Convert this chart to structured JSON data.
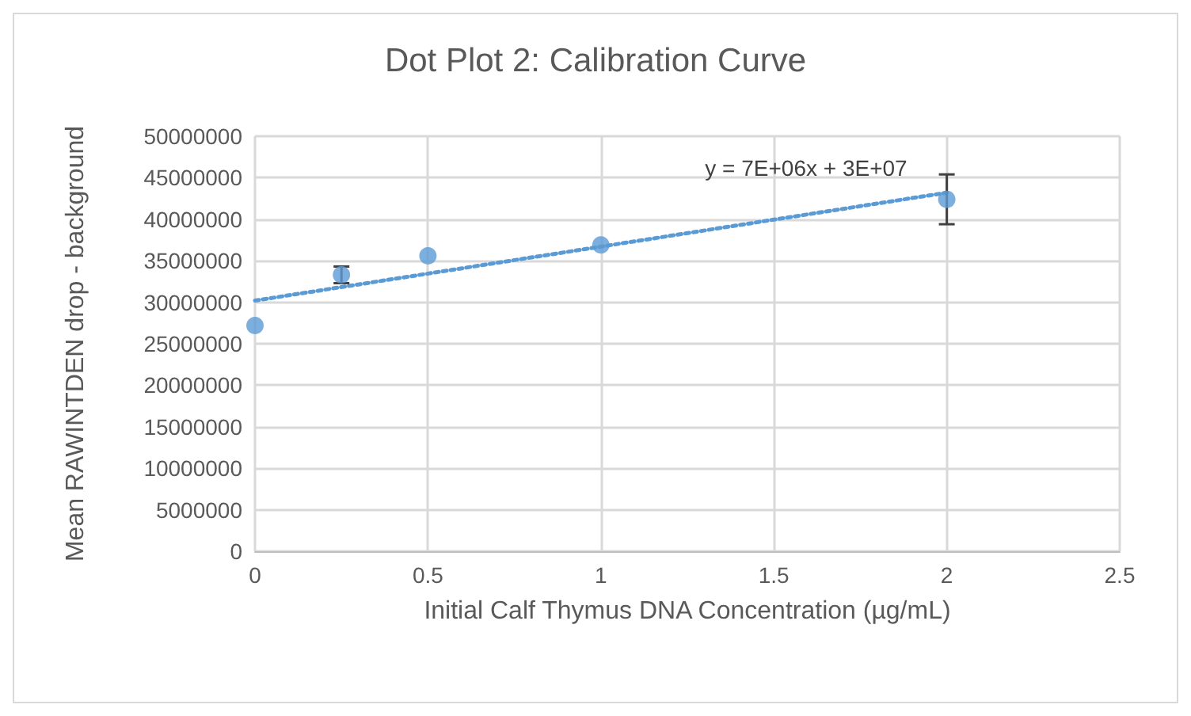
{
  "chart_data": {
    "type": "scatter",
    "title": "Dot Plot 2: Calibration Curve",
    "xlabel": "Initial Calf Thymus DNA Concentration (µg/mL)",
    "ylabel": "Mean RAWINTDEN drop - background",
    "x": [
      0,
      0.25,
      0.5,
      1,
      2
    ],
    "series": [
      {
        "color": "#5b9bd5",
        "values": [
          27200000,
          33300000,
          35600000,
          36900000,
          42400000
        ],
        "errors": [
          null,
          1000000,
          null,
          null,
          3000000
        ]
      },
      {
        "type": "line",
        "color": "#5b9bd5",
        "x": [
          0,
          2
        ],
        "values": [
          30200000,
          43200000
        ],
        "line_style": "dotted",
        "marker": "none"
      }
    ],
    "annotations": [
      "y = 7E+06x + 3E+07"
    ],
    "xlim": [
      0,
      2.5
    ],
    "xticks": [
      0,
      0.5,
      1,
      1.5,
      2,
      2.5
    ],
    "ylim": [
      0,
      50000000
    ],
    "yticks": [
      0,
      5000000,
      10000000,
      15000000,
      20000000,
      25000000,
      30000000,
      35000000,
      40000000,
      45000000,
      50000000
    ],
    "grid": true,
    "marker": "circle"
  }
}
